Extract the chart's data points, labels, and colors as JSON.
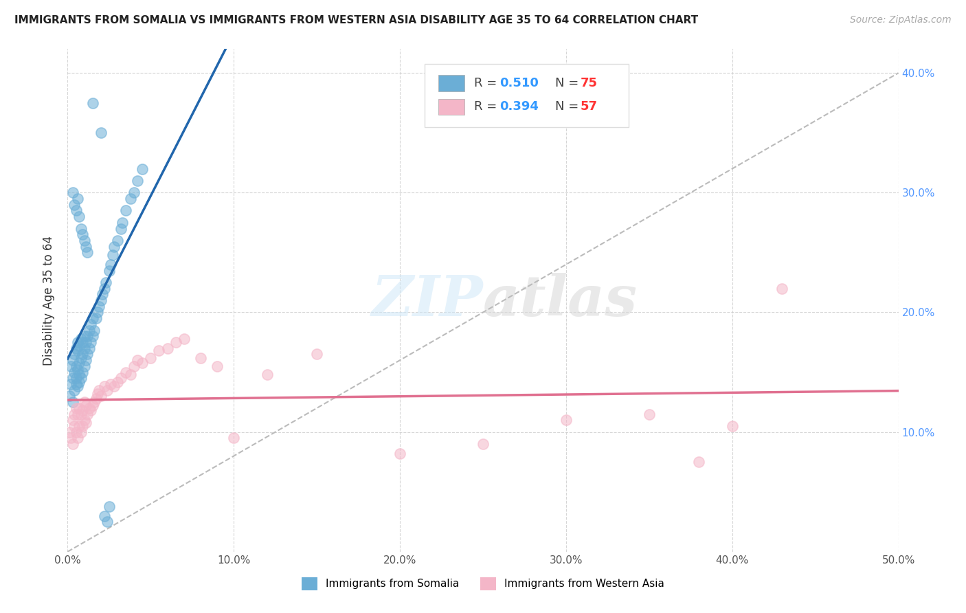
{
  "title": "IMMIGRANTS FROM SOMALIA VS IMMIGRANTS FROM WESTERN ASIA DISABILITY AGE 35 TO 64 CORRELATION CHART",
  "source": "Source: ZipAtlas.com",
  "ylabel": "Disability Age 35 to 64",
  "xlim": [
    0.0,
    0.5
  ],
  "ylim": [
    0.0,
    0.42
  ],
  "somalia_color": "#6baed6",
  "western_asia_color": "#f4b6c8",
  "somalia_R": 0.51,
  "somalia_N": 75,
  "western_asia_R": 0.394,
  "western_asia_N": 57,
  "somalia_line_color": "#2166ac",
  "western_asia_line_color": "#e07090",
  "diagonal_color": "#bbbbbb",
  "legend_R_color": "#3399ff",
  "legend_N_color": "#ff3333",
  "somalia_scatter_x": [
    0.001,
    0.002,
    0.002,
    0.003,
    0.003,
    0.003,
    0.004,
    0.004,
    0.004,
    0.005,
    0.005,
    0.005,
    0.005,
    0.006,
    0.006,
    0.006,
    0.006,
    0.007,
    0.007,
    0.007,
    0.007,
    0.008,
    0.008,
    0.008,
    0.009,
    0.009,
    0.009,
    0.01,
    0.01,
    0.01,
    0.011,
    0.011,
    0.012,
    0.012,
    0.013,
    0.013,
    0.014,
    0.014,
    0.015,
    0.015,
    0.016,
    0.017,
    0.018,
    0.019,
    0.02,
    0.021,
    0.022,
    0.023,
    0.025,
    0.026,
    0.027,
    0.028,
    0.03,
    0.032,
    0.033,
    0.035,
    0.038,
    0.04,
    0.042,
    0.045,
    0.003,
    0.004,
    0.005,
    0.006,
    0.007,
    0.008,
    0.009,
    0.01,
    0.011,
    0.012,
    0.015,
    0.02,
    0.025,
    0.022,
    0.024
  ],
  "somalia_scatter_y": [
    0.13,
    0.14,
    0.155,
    0.125,
    0.145,
    0.16,
    0.135,
    0.15,
    0.165,
    0.14,
    0.155,
    0.17,
    0.145,
    0.138,
    0.152,
    0.168,
    0.175,
    0.142,
    0.158,
    0.172,
    0.148,
    0.145,
    0.162,
    0.178,
    0.15,
    0.165,
    0.175,
    0.155,
    0.17,
    0.18,
    0.16,
    0.175,
    0.165,
    0.18,
    0.17,
    0.185,
    0.175,
    0.19,
    0.18,
    0.195,
    0.185,
    0.195,
    0.2,
    0.205,
    0.21,
    0.215,
    0.22,
    0.225,
    0.235,
    0.24,
    0.248,
    0.255,
    0.26,
    0.27,
    0.275,
    0.285,
    0.295,
    0.3,
    0.31,
    0.32,
    0.3,
    0.29,
    0.285,
    0.295,
    0.28,
    0.27,
    0.265,
    0.26,
    0.255,
    0.25,
    0.375,
    0.35,
    0.038,
    0.03,
    0.025
  ],
  "western_asia_scatter_x": [
    0.001,
    0.002,
    0.003,
    0.003,
    0.004,
    0.004,
    0.005,
    0.005,
    0.006,
    0.006,
    0.007,
    0.007,
    0.008,
    0.008,
    0.009,
    0.009,
    0.01,
    0.01,
    0.011,
    0.011,
    0.012,
    0.013,
    0.014,
    0.015,
    0.016,
    0.017,
    0.018,
    0.019,
    0.02,
    0.022,
    0.024,
    0.026,
    0.028,
    0.03,
    0.032,
    0.035,
    0.038,
    0.04,
    0.042,
    0.045,
    0.05,
    0.055,
    0.06,
    0.065,
    0.07,
    0.08,
    0.09,
    0.1,
    0.12,
    0.15,
    0.2,
    0.25,
    0.3,
    0.35,
    0.38,
    0.4,
    0.43
  ],
  "western_asia_scatter_y": [
    0.1,
    0.095,
    0.11,
    0.09,
    0.105,
    0.115,
    0.1,
    0.12,
    0.095,
    0.115,
    0.105,
    0.12,
    0.1,
    0.115,
    0.105,
    0.118,
    0.11,
    0.125,
    0.108,
    0.122,
    0.115,
    0.12,
    0.118,
    0.122,
    0.125,
    0.128,
    0.132,
    0.135,
    0.13,
    0.138,
    0.135,
    0.14,
    0.138,
    0.142,
    0.145,
    0.15,
    0.148,
    0.155,
    0.16,
    0.158,
    0.162,
    0.168,
    0.17,
    0.175,
    0.178,
    0.162,
    0.155,
    0.095,
    0.148,
    0.165,
    0.082,
    0.09,
    0.11,
    0.115,
    0.075,
    0.105,
    0.22
  ]
}
